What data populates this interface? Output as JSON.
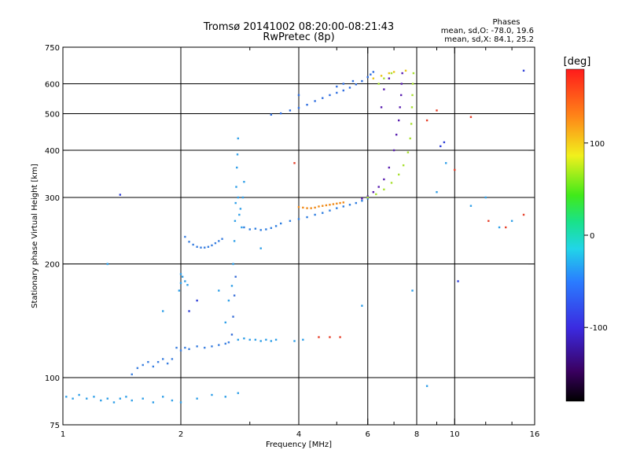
{
  "header": {
    "title_line1": "Tromsø 20141002 08:20:00-08:21:43",
    "title_line2": "RwPretec (8p)"
  },
  "stats": {
    "heading": "Phases",
    "line_o": "mean, sd,O: -78.0, 19.6",
    "line_x": "mean, sd,X:  84.1, 25.2"
  },
  "chart_data": {
    "type": "scatter",
    "xlabel": "Frequency [MHz]",
    "ylabel": "Stationary phase Virtual Height [km]",
    "x_scale": "log",
    "y_scale": "log",
    "xlim": [
      1,
      16
    ],
    "ylim": [
      75,
      750
    ],
    "grid": true,
    "x_ticks": [
      1,
      2,
      4,
      6,
      8,
      10,
      16
    ],
    "x_tick_labels": [
      "1",
      "2",
      "4",
      "6",
      "8",
      "10",
      "16"
    ],
    "x_grid": [
      2,
      4,
      6,
      8,
      10
    ],
    "x_minor_ticks": [
      3,
      5,
      7,
      9,
      12,
      14
    ],
    "y_ticks": [
      75,
      100,
      200,
      300,
      400,
      500,
      600,
      750
    ],
    "y_tick_labels": [
      "75",
      "100",
      "200",
      "300",
      "400",
      "500",
      "600",
      "750"
    ],
    "y_grid": [
      100,
      200,
      300,
      400,
      500,
      600
    ],
    "colorbar": {
      "label": "[deg]",
      "range": [
        -180,
        180
      ],
      "ticks": [
        100,
        0,
        -100
      ],
      "tick_labels": [
        "100",
        "0",
        "-100"
      ]
    },
    "series": [
      {
        "color": "#2f9fe8",
        "points": [
          [
            1.02,
            89
          ],
          [
            1.06,
            88
          ],
          [
            1.1,
            90
          ],
          [
            1.15,
            88
          ],
          [
            1.2,
            89
          ],
          [
            1.25,
            87
          ],
          [
            1.3,
            88
          ],
          [
            1.35,
            86
          ],
          [
            1.4,
            88
          ],
          [
            1.45,
            89
          ],
          [
            1.5,
            87
          ],
          [
            1.6,
            88
          ],
          [
            1.7,
            86
          ],
          [
            1.8,
            89
          ],
          [
            1.9,
            87
          ],
          [
            2.0,
            86
          ],
          [
            2.2,
            88
          ],
          [
            2.4,
            90
          ],
          [
            2.6,
            89
          ],
          [
            2.8,
            91
          ]
        ]
      },
      {
        "color": "#3a7fe0",
        "points": [
          [
            1.5,
            102
          ],
          [
            1.55,
            106
          ],
          [
            1.6,
            108
          ],
          [
            1.65,
            110
          ],
          [
            1.7,
            107
          ],
          [
            1.75,
            110
          ],
          [
            1.8,
            112
          ],
          [
            1.85,
            109
          ],
          [
            1.9,
            112
          ],
          [
            1.95,
            120
          ],
          [
            2.0,
            118
          ],
          [
            2.05,
            120
          ],
          [
            2.1,
            119
          ],
          [
            2.2,
            121
          ],
          [
            2.3,
            120
          ],
          [
            2.4,
            121
          ],
          [
            2.5,
            122
          ],
          [
            2.6,
            123
          ],
          [
            2.65,
            124
          ]
        ]
      },
      {
        "color": "#2f9fe8",
        "points": [
          [
            1.98,
            170
          ],
          [
            2.0,
            178
          ],
          [
            2.02,
            185
          ],
          [
            2.05,
            180
          ],
          [
            2.08,
            176
          ],
          [
            2.0,
            188
          ]
        ]
      },
      {
        "color": "#3a7fe0",
        "points": [
          [
            2.05,
            236
          ],
          [
            2.1,
            229
          ],
          [
            2.15,
            225
          ],
          [
            2.2,
            222
          ],
          [
            2.25,
            221
          ],
          [
            2.3,
            221
          ],
          [
            2.35,
            222
          ],
          [
            2.4,
            224
          ],
          [
            2.45,
            227
          ],
          [
            2.5,
            230
          ],
          [
            2.55,
            233
          ]
        ]
      },
      {
        "color": "#2f9fe8",
        "points": [
          [
            2.6,
            140
          ],
          [
            2.65,
            160
          ],
          [
            2.7,
            175
          ],
          [
            2.72,
            200
          ],
          [
            2.74,
            230
          ],
          [
            2.75,
            260
          ],
          [
            2.76,
            290
          ],
          [
            2.77,
            320
          ],
          [
            2.78,
            360
          ],
          [
            2.79,
            390
          ],
          [
            2.8,
            300
          ],
          [
            2.82,
            270
          ],
          [
            2.84,
            280
          ],
          [
            2.86,
            250
          ],
          [
            2.88,
            300
          ],
          [
            2.9,
            330
          ],
          [
            2.8,
            430
          ]
        ]
      },
      {
        "color": "#3a6fd8",
        "points": [
          [
            2.7,
            130
          ],
          [
            2.72,
            145
          ],
          [
            2.74,
            165
          ],
          [
            2.76,
            185
          ]
        ]
      },
      {
        "color": "#2f9fe8",
        "points": [
          [
            2.8,
            126
          ],
          [
            2.9,
            127
          ],
          [
            3.0,
            126
          ],
          [
            3.1,
            126
          ],
          [
            3.2,
            125
          ],
          [
            3.3,
            126
          ],
          [
            3.4,
            125
          ],
          [
            3.5,
            126
          ],
          [
            3.9,
            125
          ],
          [
            4.1,
            126
          ]
        ]
      },
      {
        "color": "#2f7ee0",
        "points": [
          [
            2.9,
            250
          ],
          [
            3.0,
            247
          ],
          [
            3.1,
            248
          ],
          [
            3.2,
            246
          ],
          [
            3.3,
            247
          ],
          [
            3.4,
            249
          ],
          [
            3.5,
            252
          ],
          [
            3.6,
            256
          ],
          [
            3.8,
            260
          ],
          [
            4.0,
            263
          ],
          [
            4.2,
            266
          ],
          [
            4.4,
            270
          ],
          [
            4.6,
            273
          ],
          [
            4.8,
            277
          ],
          [
            5.0,
            281
          ],
          [
            5.2,
            284
          ],
          [
            5.4,
            287
          ],
          [
            5.6,
            290
          ],
          [
            5.8,
            294
          ],
          [
            6.0,
            298
          ]
        ]
      },
      {
        "color": "#f08a18",
        "points": [
          [
            4.0,
            283
          ],
          [
            4.1,
            282
          ],
          [
            4.2,
            281
          ],
          [
            4.3,
            281
          ],
          [
            4.4,
            282
          ],
          [
            4.5,
            284
          ],
          [
            4.6,
            285
          ],
          [
            4.7,
            286
          ],
          [
            4.8,
            287
          ],
          [
            4.9,
            288
          ],
          [
            5.0,
            289
          ],
          [
            5.1,
            290
          ],
          [
            5.2,
            291
          ]
        ]
      },
      {
        "color": "#2f6ee0",
        "points": [
          [
            3.4,
            497
          ],
          [
            3.6,
            501
          ],
          [
            3.8,
            510
          ],
          [
            4.0,
            518
          ],
          [
            4.2,
            528
          ],
          [
            4.4,
            540
          ],
          [
            4.6,
            550
          ],
          [
            4.8,
            560
          ],
          [
            5.0,
            568
          ],
          [
            5.2,
            576
          ],
          [
            5.4,
            586
          ],
          [
            5.6,
            598
          ],
          [
            5.8,
            610
          ],
          [
            6.0,
            625
          ],
          [
            6.1,
            635
          ],
          [
            6.2,
            645
          ],
          [
            5.0,
            590
          ],
          [
            5.2,
            600
          ],
          [
            5.5,
            610
          ],
          [
            4.0,
            560
          ]
        ]
      },
      {
        "color": "#5a1fb0",
        "points": [
          [
            5.8,
            298
          ],
          [
            6.0,
            302
          ],
          [
            6.2,
            310
          ],
          [
            6.4,
            320
          ],
          [
            6.6,
            335
          ],
          [
            6.8,
            360
          ],
          [
            7.0,
            400
          ],
          [
            7.1,
            440
          ],
          [
            7.2,
            480
          ],
          [
            7.25,
            520
          ],
          [
            7.3,
            560
          ],
          [
            7.32,
            600
          ],
          [
            7.35,
            640
          ],
          [
            6.5,
            520
          ],
          [
            6.6,
            580
          ],
          [
            6.8,
            620
          ]
        ]
      },
      {
        "color": "#a8e030",
        "points": [
          [
            6.0,
            300
          ],
          [
            6.3,
            306
          ],
          [
            6.6,
            315
          ],
          [
            6.9,
            328
          ],
          [
            7.2,
            345
          ],
          [
            7.4,
            365
          ],
          [
            7.6,
            395
          ],
          [
            7.7,
            430
          ],
          [
            7.75,
            470
          ],
          [
            7.78,
            520
          ],
          [
            7.8,
            560
          ],
          [
            7.82,
            600
          ],
          [
            7.85,
            640
          ],
          [
            6.4,
            600
          ],
          [
            6.6,
            620
          ],
          [
            6.9,
            640
          ]
        ]
      },
      {
        "color": "#e8c418",
        "points": [
          [
            6.2,
            620
          ],
          [
            6.5,
            630
          ],
          [
            6.8,
            640
          ],
          [
            7.0,
            645
          ],
          [
            7.5,
            650
          ]
        ]
      },
      {
        "color": "#2f9fe8",
        "points": [
          [
            1.3,
            200
          ],
          [
            1.8,
            150
          ],
          [
            2.5,
            170
          ],
          [
            3.2,
            220
          ],
          [
            5.8,
            155
          ],
          [
            7.8,
            170
          ],
          [
            8.5,
            95
          ],
          [
            9.0,
            310
          ],
          [
            9.5,
            370
          ],
          [
            11,
            285
          ],
          [
            12,
            300
          ],
          [
            13,
            250
          ],
          [
            14,
            260
          ]
        ]
      },
      {
        "color": "#e6402a",
        "points": [
          [
            3.9,
            370
          ],
          [
            4.5,
            128
          ],
          [
            4.8,
            128
          ],
          [
            5.1,
            128
          ],
          [
            8.5,
            480
          ],
          [
            9.0,
            510
          ],
          [
            10,
            355
          ],
          [
            11,
            490
          ],
          [
            12.2,
            260
          ],
          [
            13.5,
            250
          ],
          [
            15,
            270
          ]
        ]
      },
      {
        "color": "#2f3fd8",
        "points": [
          [
            1.4,
            305
          ],
          [
            2.1,
            150
          ],
          [
            2.2,
            160
          ],
          [
            9.2,
            410
          ],
          [
            9.4,
            420
          ],
          [
            10.2,
            180
          ],
          [
            15,
            650
          ]
        ]
      }
    ]
  }
}
